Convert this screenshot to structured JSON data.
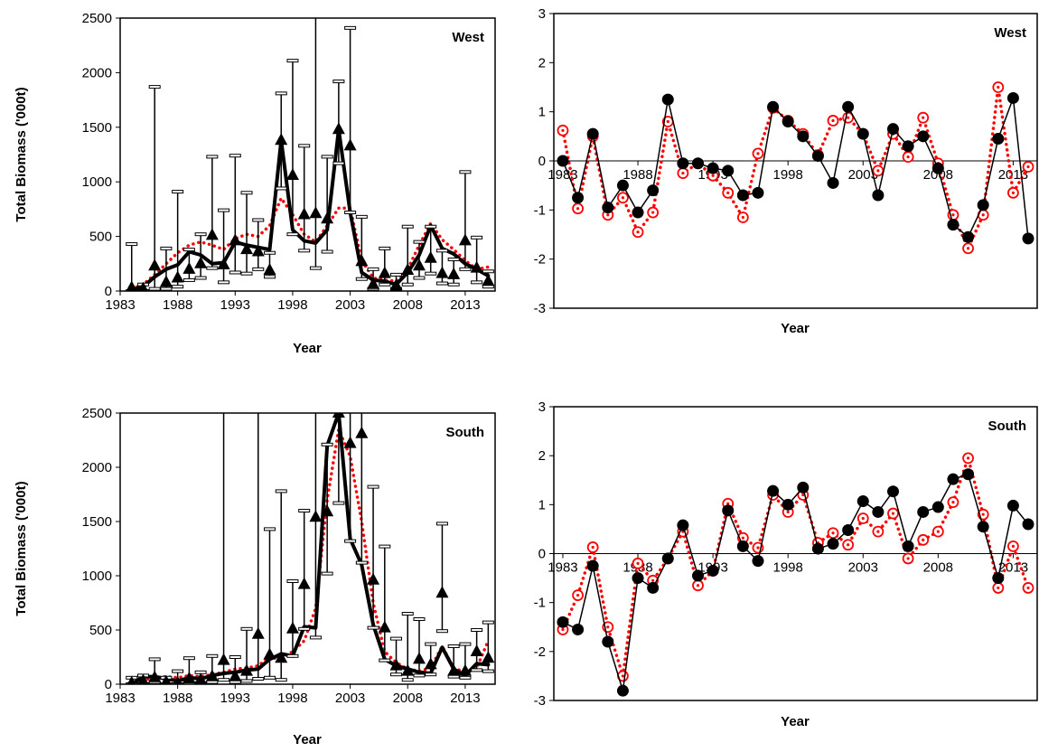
{
  "chart_data": [
    {
      "type": "line",
      "annotation": "West",
      "xlabel": "Year",
      "ylabel": "Total Biomass ('000t)",
      "xlim": [
        1983,
        2015.6
      ],
      "xticks": [
        1983,
        1988,
        1993,
        1998,
        2003,
        2008,
        2013
      ],
      "ylim": [
        0,
        2500
      ],
      "yticks": [
        0,
        500,
        1000,
        1500,
        2000,
        2500
      ],
      "x": [
        1984,
        1985,
        1986,
        1987,
        1988,
        1989,
        1990,
        1991,
        1992,
        1993,
        1994,
        1995,
        1996,
        1997,
        1998,
        1999,
        2000,
        2001,
        2002,
        2003,
        2004,
        2005,
        2006,
        2007,
        2008,
        2009,
        2010,
        2011,
        2012,
        2013,
        2014,
        2015
      ],
      "series": [
        {
          "color": "#ff0000",
          "marker": "none",
          "line_width": 3.5,
          "dash": true,
          "values": [
            20,
            60,
            150,
            250,
            350,
            420,
            450,
            420,
            380,
            480,
            520,
            500,
            600,
            850,
            700,
            520,
            450,
            600,
            760,
            760,
            280,
            120,
            100,
            90,
            200,
            420,
            620,
            470,
            380,
            280,
            200,
            220
          ]
        },
        {
          "color": "#000000",
          "marker": "none",
          "line_width": 4,
          "dash": false,
          "values": [
            10,
            40,
            130,
            200,
            240,
            360,
            330,
            250,
            260,
            450,
            420,
            400,
            380,
            1380,
            560,
            460,
            440,
            560,
            1480,
            720,
            170,
            100,
            90,
            60,
            170,
            330,
            600,
            390,
            340,
            250,
            200,
            140
          ]
        },
        {
          "color": "#000000",
          "marker": "triangle",
          "line_width": 0,
          "dash": false,
          "values": [
            30,
            20,
            230,
            80,
            120,
            200,
            250,
            510,
            240,
            460,
            380,
            360,
            190,
            1380,
            1060,
            700,
            710,
            660,
            1480,
            1330,
            270,
            60,
            160,
            50,
            190,
            230,
            300,
            160,
            150,
            460,
            210,
            90
          ],
          "upper": [
            430,
            60,
            1870,
            390,
            910,
            380,
            520,
            1230,
            740,
            1240,
            900,
            650,
            350,
            1810,
            2110,
            1330,
            2700,
            1230,
            1920,
            2410,
            680,
            200,
            390,
            150,
            590,
            450,
            590,
            370,
            290,
            1090,
            490,
            180
          ],
          "lower": [
            0,
            0,
            20,
            20,
            40,
            100,
            120,
            210,
            80,
            170,
            160,
            200,
            130,
            940,
            520,
            370,
            210,
            360,
            1170,
            720,
            110,
            20,
            60,
            20,
            60,
            120,
            160,
            70,
            60,
            200,
            80,
            40
          ]
        }
      ]
    },
    {
      "type": "line",
      "annotation": "West",
      "xlabel": "Year",
      "xlim": [
        1982.4,
        2014.6
      ],
      "xticks": [
        1983,
        1988,
        1993,
        1998,
        2003,
        2008,
        2013
      ],
      "ylim": [
        -3,
        3
      ],
      "yticks": [
        -3,
        -2,
        -1,
        0,
        1,
        2,
        3
      ],
      "x": [
        1983,
        1984,
        1985,
        1986,
        1987,
        1988,
        1989,
        1990,
        1991,
        1992,
        1993,
        1994,
        1995,
        1996,
        1997,
        1998,
        1999,
        2000,
        2001,
        2002,
        2003,
        2004,
        2005,
        2006,
        2007,
        2008,
        2009,
        2010,
        2011,
        2012,
        2013,
        2014
      ],
      "series": [
        {
          "color": "#ff0000",
          "marker": "open-circle",
          "line_width": 3.5,
          "dash": true,
          "values": [
            0.62,
            -0.97,
            0.5,
            -1.1,
            -0.75,
            -1.45,
            -1.05,
            0.8,
            -0.25,
            -0.05,
            -0.3,
            -0.65,
            -1.15,
            0.15,
            1.08,
            0.82,
            0.55,
            0.12,
            0.82,
            0.88,
            0.55,
            -0.2,
            0.55,
            0.08,
            0.88,
            -0.05,
            -1.1,
            -1.78,
            -1.1,
            1.5,
            -0.65,
            -0.12
          ]
        },
        {
          "color": "#000000",
          "marker": "circle",
          "line_width": 1.5,
          "dash": false,
          "values": [
            0,
            -0.75,
            0.55,
            -0.95,
            -0.5,
            -1.05,
            -0.6,
            1.25,
            -0.05,
            -0.05,
            -0.15,
            -0.2,
            -0.7,
            -0.65,
            1.1,
            0.8,
            0.5,
            0.1,
            -0.45,
            1.1,
            0.55,
            -0.7,
            0.65,
            0.3,
            0.5,
            -0.15,
            -1.3,
            -1.55,
            -0.9,
            0.45,
            1.28,
            -1.58
          ]
        }
      ]
    },
    {
      "type": "line",
      "annotation": "South",
      "xlabel": "Year",
      "ylabel": "Total Biomass ('000t)",
      "xlim": [
        1983,
        2015.6
      ],
      "xticks": [
        1983,
        1988,
        1993,
        1998,
        2003,
        2008,
        2013
      ],
      "ylim": [
        0,
        2500
      ],
      "yticks": [
        0,
        500,
        1000,
        1500,
        2000,
        2500
      ],
      "x": [
        1984,
        1985,
        1986,
        1987,
        1988,
        1989,
        1990,
        1991,
        1992,
        1993,
        1994,
        1995,
        1996,
        1997,
        1998,
        1999,
        2000,
        2001,
        2002,
        2003,
        2004,
        2005,
        2006,
        2007,
        2008,
        2009,
        2010,
        2011,
        2012,
        2013,
        2014,
        2015
      ],
      "series": [
        {
          "color": "#ff0000",
          "marker": "none",
          "line_width": 3.5,
          "dash": true,
          "values": [
            20,
            40,
            60,
            70,
            60,
            80,
            70,
            90,
            110,
            140,
            150,
            170,
            250,
            250,
            300,
            400,
            700,
            1700,
            2350,
            2100,
            1500,
            750,
            300,
            200,
            140,
            120,
            150,
            350,
            150,
            110,
            150,
            400
          ]
        },
        {
          "color": "#000000",
          "marker": "none",
          "line_width": 4,
          "dash": false,
          "values": [
            0,
            70,
            70,
            50,
            30,
            60,
            50,
            80,
            100,
            110,
            130,
            140,
            230,
            280,
            260,
            530,
            520,
            2200,
            2500,
            1340,
            1100,
            550,
            230,
            170,
            140,
            110,
            100,
            340,
            140,
            80,
            190,
            180
          ]
        },
        {
          "color": "#000000",
          "marker": "triangle",
          "line_width": 0,
          "dash": false,
          "values": [
            10,
            30,
            60,
            20,
            10,
            50,
            40,
            70,
            220,
            70,
            120,
            460,
            270,
            240,
            510,
            920,
            1540,
            1590,
            2500,
            2220,
            2310,
            960,
            520,
            170,
            120,
            230,
            180,
            840,
            120,
            120,
            300,
            240
          ],
          "upper": [
            60,
            80,
            230,
            60,
            120,
            240,
            110,
            260,
            2700,
            250,
            510,
            2700,
            1430,
            1780,
            950,
            1600,
            2700,
            2210,
            2700,
            2700,
            2700,
            1820,
            1270,
            420,
            650,
            600,
            370,
            1480,
            350,
            370,
            500,
            570
          ],
          "lower": [
            0,
            0,
            20,
            0,
            0,
            10,
            10,
            20,
            40,
            20,
            30,
            50,
            60,
            40,
            260,
            510,
            430,
            1020,
            1670,
            1320,
            1120,
            520,
            220,
            90,
            40,
            80,
            90,
            490,
            70,
            60,
            130,
            120
          ]
        }
      ]
    },
    {
      "type": "line",
      "annotation": "South",
      "xlabel": "Year",
      "xlim": [
        1982.4,
        2014.6
      ],
      "xticks": [
        1983,
        1988,
        1993,
        1998,
        2003,
        2008,
        2013
      ],
      "ylim": [
        -3,
        3
      ],
      "yticks": [
        -3,
        -2,
        -1,
        0,
        1,
        2,
        3
      ],
      "x": [
        1983,
        1984,
        1985,
        1986,
        1987,
        1988,
        1989,
        1990,
        1991,
        1992,
        1993,
        1994,
        1995,
        1996,
        1997,
        1998,
        1999,
        2000,
        2001,
        2002,
        2003,
        2004,
        2005,
        2006,
        2007,
        2008,
        2009,
        2010,
        2011,
        2012,
        2013,
        2014
      ],
      "series": [
        {
          "color": "#ff0000",
          "marker": "open-circle",
          "line_width": 3.5,
          "dash": true,
          "values": [
            -1.55,
            -0.85,
            0.13,
            -1.5,
            -2.5,
            -0.2,
            -0.55,
            -0.1,
            0.45,
            -0.65,
            -0.35,
            1.02,
            0.32,
            0.12,
            1.2,
            0.85,
            1.2,
            0.22,
            0.42,
            0.18,
            0.72,
            0.45,
            0.82,
            -0.1,
            0.28,
            0.45,
            1.05,
            1.95,
            0.8,
            -0.7,
            0.15,
            -0.7
          ]
        },
        {
          "color": "#000000",
          "marker": "circle",
          "line_width": 1.5,
          "dash": false,
          "values": [
            -1.4,
            -1.55,
            -0.25,
            -1.8,
            -2.8,
            -0.5,
            -0.7,
            -0.1,
            0.58,
            -0.45,
            -0.35,
            0.88,
            0.15,
            -0.15,
            1.28,
            1.0,
            1.35,
            0.1,
            0.2,
            0.48,
            1.07,
            0.85,
            1.27,
            0.15,
            0.85,
            0.95,
            1.52,
            1.62,
            0.55,
            -0.5,
            0.98,
            0.6
          ]
        }
      ]
    }
  ]
}
